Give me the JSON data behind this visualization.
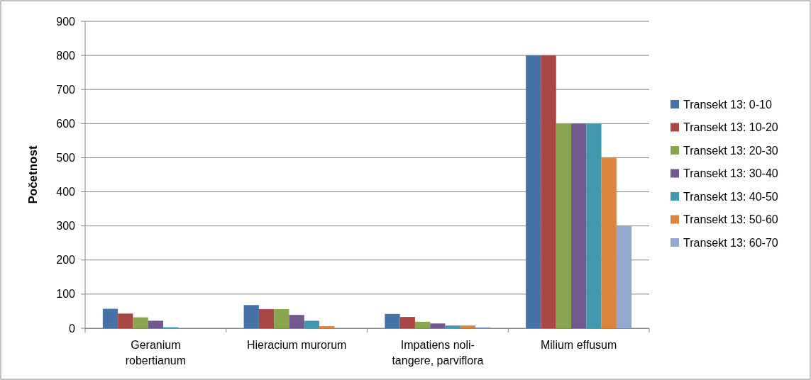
{
  "chart_data": {
    "type": "bar",
    "ylabel": "Početnost",
    "categories": [
      "Geranium robertianum",
      "Hieracium murorum",
      "Impatiens noli-tangere, parviflora",
      "Milium effusum"
    ],
    "series": [
      {
        "name": "Transekt 13: 0-10",
        "color": "#4572a7",
        "values": [
          57,
          68,
          42,
          800
        ]
      },
      {
        "name": "Transekt 13: 10-20",
        "color": "#aa4643",
        "values": [
          43,
          56,
          33,
          800
        ]
      },
      {
        "name": "Transekt 13: 20-30",
        "color": "#89a54e",
        "values": [
          32,
          56,
          19,
          600
        ]
      },
      {
        "name": "Transekt 13: 30-40",
        "color": "#71588f",
        "values": [
          22,
          39,
          14,
          600
        ]
      },
      {
        "name": "Transekt 13: 40-50",
        "color": "#4198af",
        "values": [
          3,
          22,
          8,
          600
        ]
      },
      {
        "name": "Transekt 13: 50-60",
        "color": "#db843d",
        "values": [
          0,
          6,
          8,
          500
        ]
      },
      {
        "name": "Transekt 13: 60-70",
        "color": "#93a9cf",
        "values": [
          0,
          0,
          3,
          300
        ]
      }
    ],
    "ylim": [
      0,
      900
    ],
    "yticks": [
      0,
      100,
      200,
      300,
      400,
      500,
      600,
      700,
      800,
      900
    ],
    "grid": "y",
    "legend": "right"
  }
}
